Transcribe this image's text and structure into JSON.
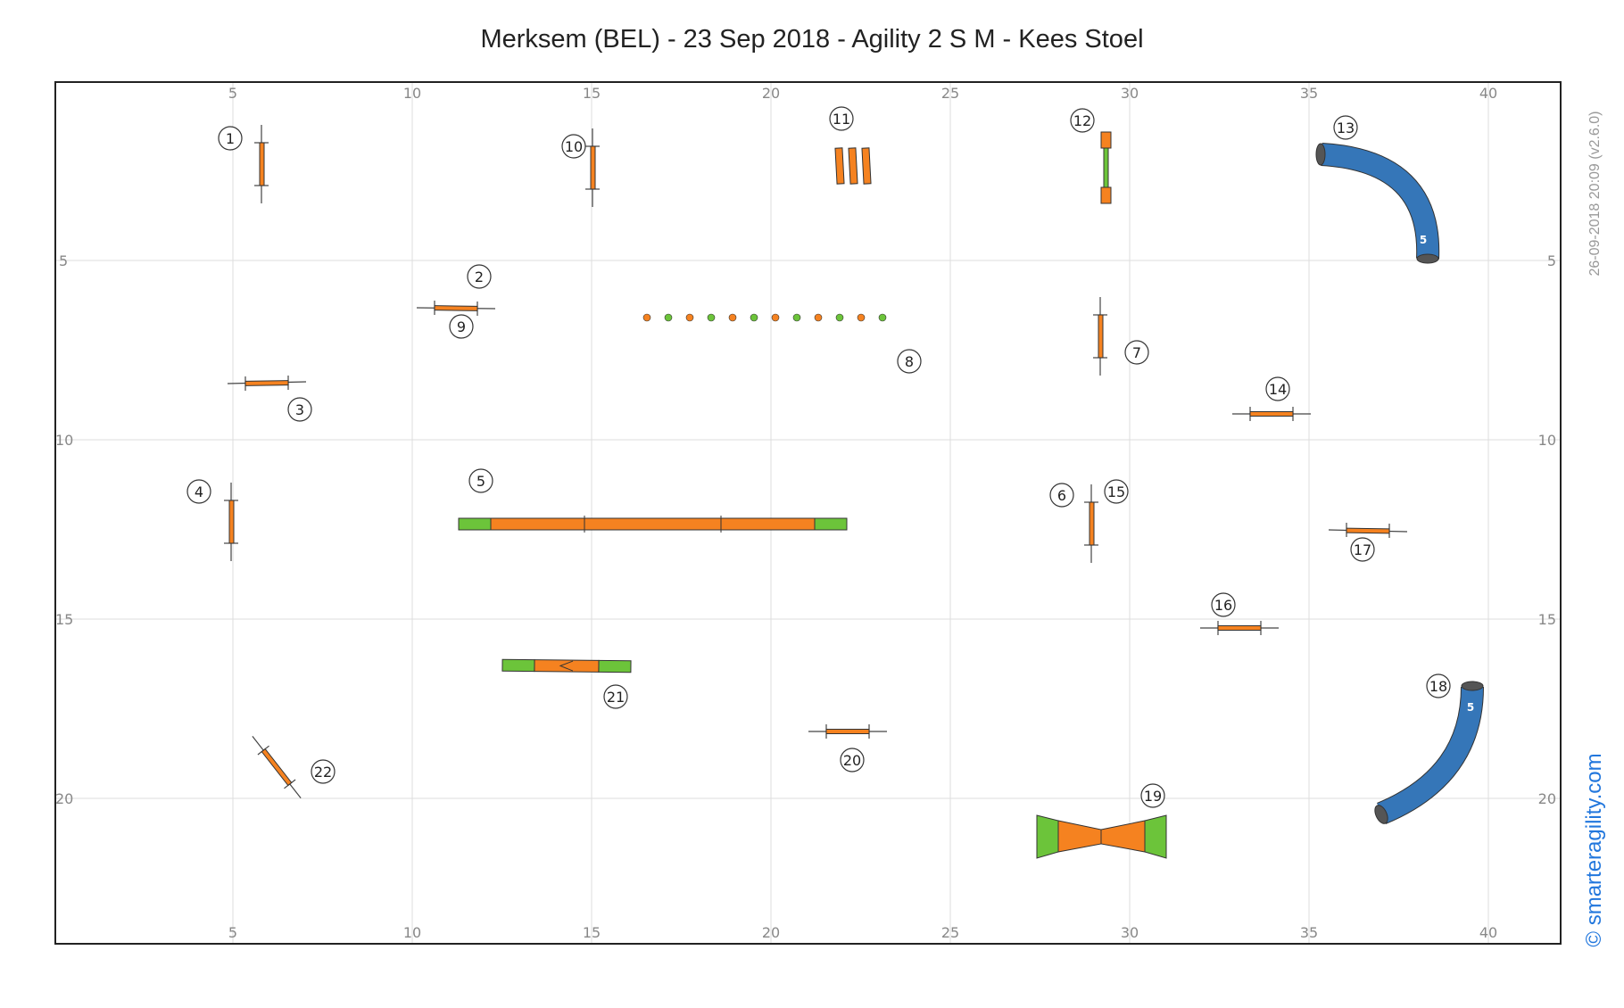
{
  "title": "Merksem (BEL) - 23 Sep 2018 - Agility 2 S M - Kees Stoel",
  "timestamp": "26-09-2018 20:09  (v2.6.0)",
  "brand": "© smarteragility.com",
  "colors": {
    "orange": "#f58220",
    "green": "#6cc43a",
    "tunnel": "#3576b8",
    "grid": "#dddddd",
    "frame": "#222222"
  },
  "grid": {
    "x_ticks": [
      "5",
      "10",
      "15",
      "20",
      "25",
      "30",
      "35",
      "40"
    ],
    "y_ticks": [
      "5",
      "10",
      "15",
      "20"
    ]
  },
  "obstacles": [
    {
      "type": "jump",
      "label": "1"
    },
    {
      "type": "jump",
      "label": "2"
    },
    {
      "type": "jump",
      "label": "3"
    },
    {
      "type": "jump",
      "label": "4"
    },
    {
      "type": "dogwalk",
      "label": "5"
    },
    {
      "type": "jump",
      "label": "6"
    },
    {
      "type": "jump",
      "label": "7"
    },
    {
      "type": "weave-poles",
      "label": "8"
    },
    {
      "type": "jump",
      "label": "9"
    },
    {
      "type": "jump",
      "label": "10"
    },
    {
      "type": "wall",
      "label": "11"
    },
    {
      "type": "tire",
      "label": "12"
    },
    {
      "type": "tunnel",
      "label": "13",
      "length_label": "5"
    },
    {
      "type": "jump",
      "label": "14"
    },
    {
      "type": "jump",
      "label": "15"
    },
    {
      "type": "jump",
      "label": "16"
    },
    {
      "type": "jump",
      "label": "17"
    },
    {
      "type": "tunnel",
      "label": "18",
      "length_label": "5"
    },
    {
      "type": "a-frame",
      "label": "19"
    },
    {
      "type": "jump",
      "label": "20"
    },
    {
      "type": "seesaw",
      "label": "21"
    },
    {
      "type": "jump",
      "label": "22"
    }
  ]
}
